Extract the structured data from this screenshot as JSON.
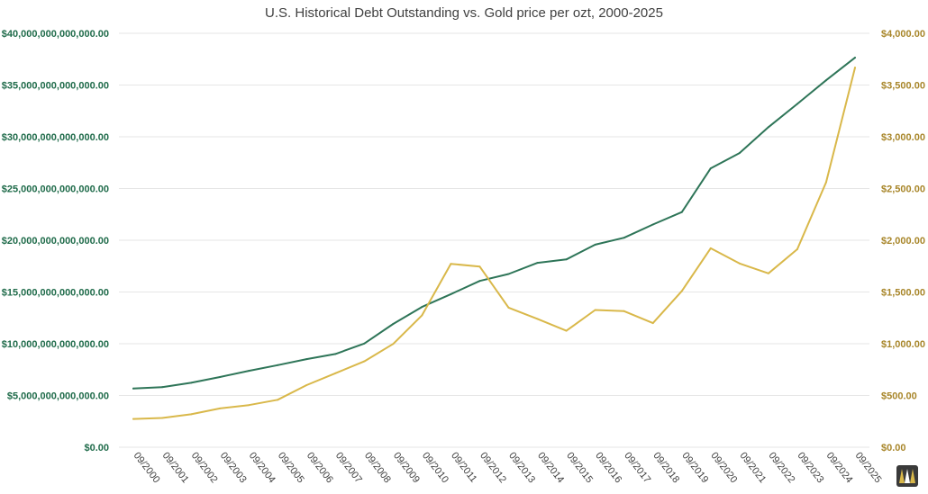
{
  "chart_data": {
    "type": "line",
    "title": "U.S. Historical Debt Outstanding vs. Gold price per ozt, 2000-2025",
    "x": [
      "09/2000",
      "09/2001",
      "09/2002",
      "09/2003",
      "09/2004",
      "09/2005",
      "09/2006",
      "09/2007",
      "09/2008",
      "09/2009",
      "09/2010",
      "09/2011",
      "09/2012",
      "09/2013",
      "09/2014",
      "09/2015",
      "09/2016",
      "09/2017",
      "09/2018",
      "09/2019",
      "09/2020",
      "09/2021",
      "09/2022",
      "09/2023",
      "09/2024",
      "09/2025"
    ],
    "y_left": {
      "ylim": [
        0,
        40000000000000
      ],
      "ticks": [
        0,
        5000000000000,
        10000000000000,
        15000000000000,
        20000000000000,
        25000000000000,
        30000000000000,
        35000000000000,
        40000000000000
      ],
      "tick_labels": [
        "$0.00",
        "$5,000,000,000,000.00",
        "$10,000,000,000,000.00",
        "$15,000,000,000,000.00",
        "$20,000,000,000,000.00",
        "$25,000,000,000,000.00",
        "$30,000,000,000,000.00",
        "$35,000,000,000,000.00",
        "$40,000,000,000,000.00"
      ],
      "color": "#1f6b4a"
    },
    "y_right": {
      "ylim": [
        0,
        4000
      ],
      "ticks": [
        0,
        500,
        1000,
        1500,
        2000,
        2500,
        3000,
        3500,
        4000
      ],
      "tick_labels": [
        "$0.00",
        "$500.00",
        "$1,000.00",
        "$1,500.00",
        "$2,000.00",
        "$2,500.00",
        "$3,000.00",
        "$3,500.00",
        "$4,000.00"
      ],
      "color": "#a8862a"
    },
    "series": [
      {
        "axis": "left",
        "color": "#2e7558",
        "values": [
          5670000000000,
          5810000000000,
          6230000000000,
          6780000000000,
          7380000000000,
          7930000000000,
          8510000000000,
          9010000000000,
          10020000000000,
          11910000000000,
          13560000000000,
          14790000000000,
          16070000000000,
          16740000000000,
          17820000000000,
          18150000000000,
          19570000000000,
          20240000000000,
          21520000000000,
          22720000000000,
          26950000000000,
          28430000000000,
          30930000000000,
          33170000000000,
          35460000000000,
          37640000000000
        ]
      },
      {
        "axis": "right",
        "color": "#d9b84a",
        "values": [
          273,
          283,
          318,
          375,
          407,
          458,
          600,
          715,
          830,
          998,
          1275,
          1772,
          1745,
          1349,
          1240,
          1125,
          1326,
          1315,
          1199,
          1510,
          1923,
          1776,
          1680,
          1913,
          2560,
          3668
        ]
      }
    ],
    "grid": true,
    "legend": "none"
  }
}
